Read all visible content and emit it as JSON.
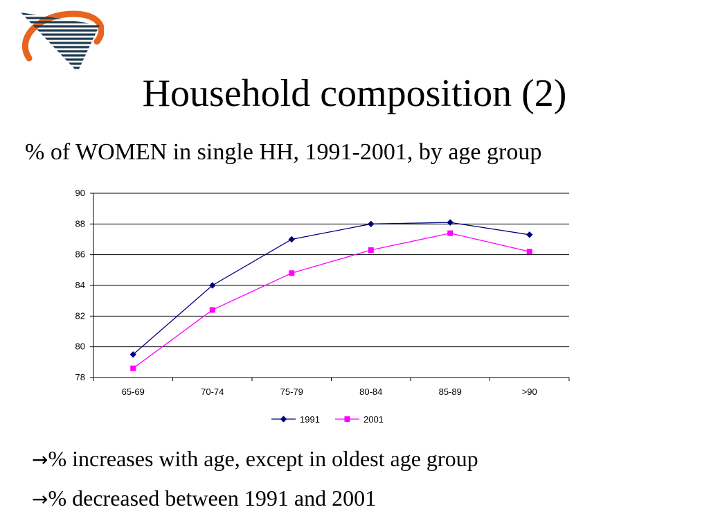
{
  "slide": {
    "title": "Household composition (2)",
    "subtitle": "% of WOMEN in single HH, 1991-2001, by age group",
    "bullets": [
      {
        "arrow": "→",
        "text": "% increases with age, except in oldest age group"
      },
      {
        "arrow": "→",
        "text": "% decreased between 1991 and 2001"
      }
    ],
    "logo_icon": "striped-triangle-swoosh-logo"
  },
  "chart_data": {
    "type": "line",
    "title": "",
    "xlabel": "",
    "ylabel": "",
    "categories": [
      "65-69",
      "70-74",
      "75-79",
      "80-84",
      "85-89",
      ">90"
    ],
    "ylim": [
      78,
      90
    ],
    "yticks": [
      78,
      80,
      82,
      84,
      86,
      88,
      90
    ],
    "grid": true,
    "legend_position": "bottom",
    "series": [
      {
        "name": "1991",
        "color": "#000080",
        "marker": "diamond",
        "values": [
          79.5,
          84.0,
          87.0,
          88.0,
          88.1,
          87.3
        ]
      },
      {
        "name": "2001",
        "color": "#ff00ff",
        "marker": "square",
        "values": [
          78.6,
          82.4,
          84.8,
          86.3,
          87.4,
          86.2
        ]
      }
    ]
  }
}
